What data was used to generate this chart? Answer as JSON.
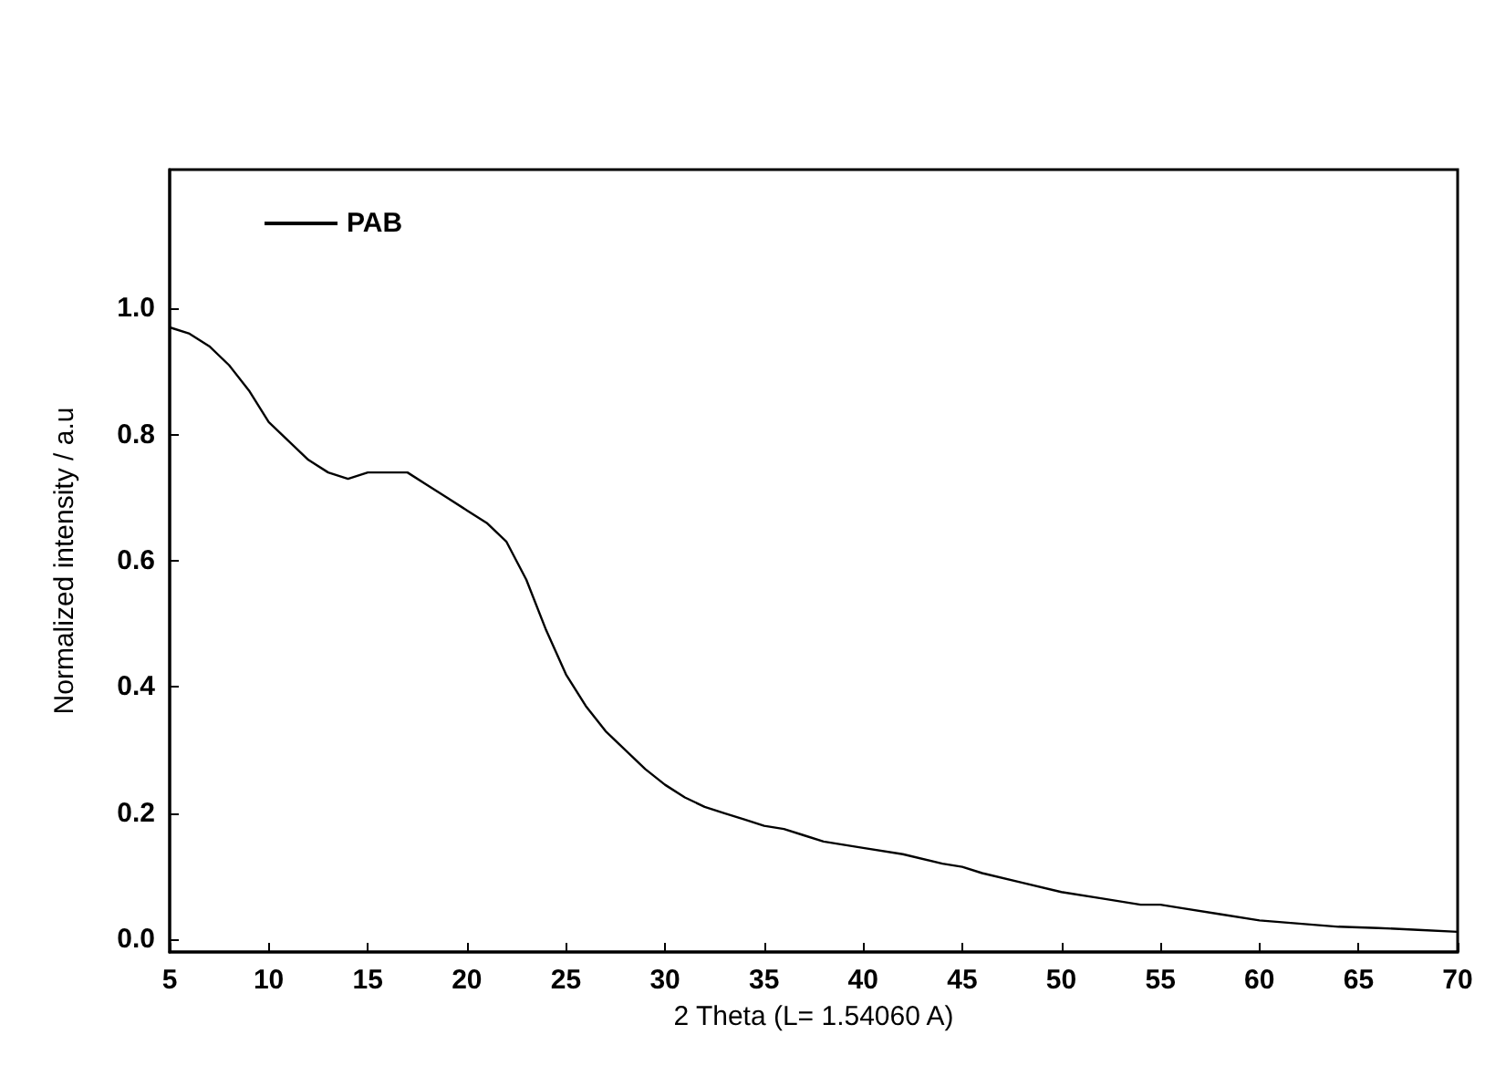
{
  "chart_data": {
    "type": "line",
    "xlabel": "2 Theta (L= 1.54060 A)",
    "ylabel": "Normalized intensity / a.u",
    "xlim": [
      5,
      70
    ],
    "xticks": [
      5,
      10,
      15,
      20,
      25,
      30,
      35,
      40,
      45,
      50,
      55,
      60,
      65,
      70
    ],
    "ylim": [
      -0.02,
      1.22
    ],
    "yticks": [
      {
        "value": 0,
        "label": "0.0"
      },
      0.2,
      0.4,
      0.6,
      0.8,
      {
        "value": 1,
        "label": "1.0"
      }
    ],
    "legend": "top left",
    "grid": false,
    "marker": "none",
    "line_style": "solid",
    "series": [
      {
        "name": "PAB",
        "color": "#000000",
        "x": [
          5,
          6,
          7,
          8,
          9,
          10,
          11,
          12,
          13,
          14,
          15,
          16,
          17,
          18,
          19,
          20,
          21,
          22,
          23,
          24,
          25,
          26,
          27,
          28,
          29,
          30,
          31,
          32,
          33,
          34,
          35,
          36,
          37,
          38,
          39,
          40,
          42,
          44,
          45,
          46,
          48,
          50,
          52,
          54,
          55,
          56,
          58,
          60,
          62,
          64,
          66,
          68,
          70
        ],
        "values": [
          0.97,
          0.96,
          0.94,
          0.91,
          0.87,
          0.82,
          0.79,
          0.76,
          0.74,
          0.73,
          0.74,
          0.74,
          0.74,
          0.72,
          0.7,
          0.68,
          0.66,
          0.63,
          0.57,
          0.49,
          0.42,
          0.37,
          0.33,
          0.3,
          0.27,
          0.245,
          0.225,
          0.21,
          0.2,
          0.19,
          0.18,
          0.175,
          0.165,
          0.155,
          0.15,
          0.145,
          0.135,
          0.12,
          0.115,
          0.105,
          0.09,
          0.075,
          0.065,
          0.055,
          0.055,
          0.05,
          0.04,
          0.03,
          0.025,
          0.02,
          0.018,
          0.015,
          0.012
        ]
      }
    ]
  }
}
